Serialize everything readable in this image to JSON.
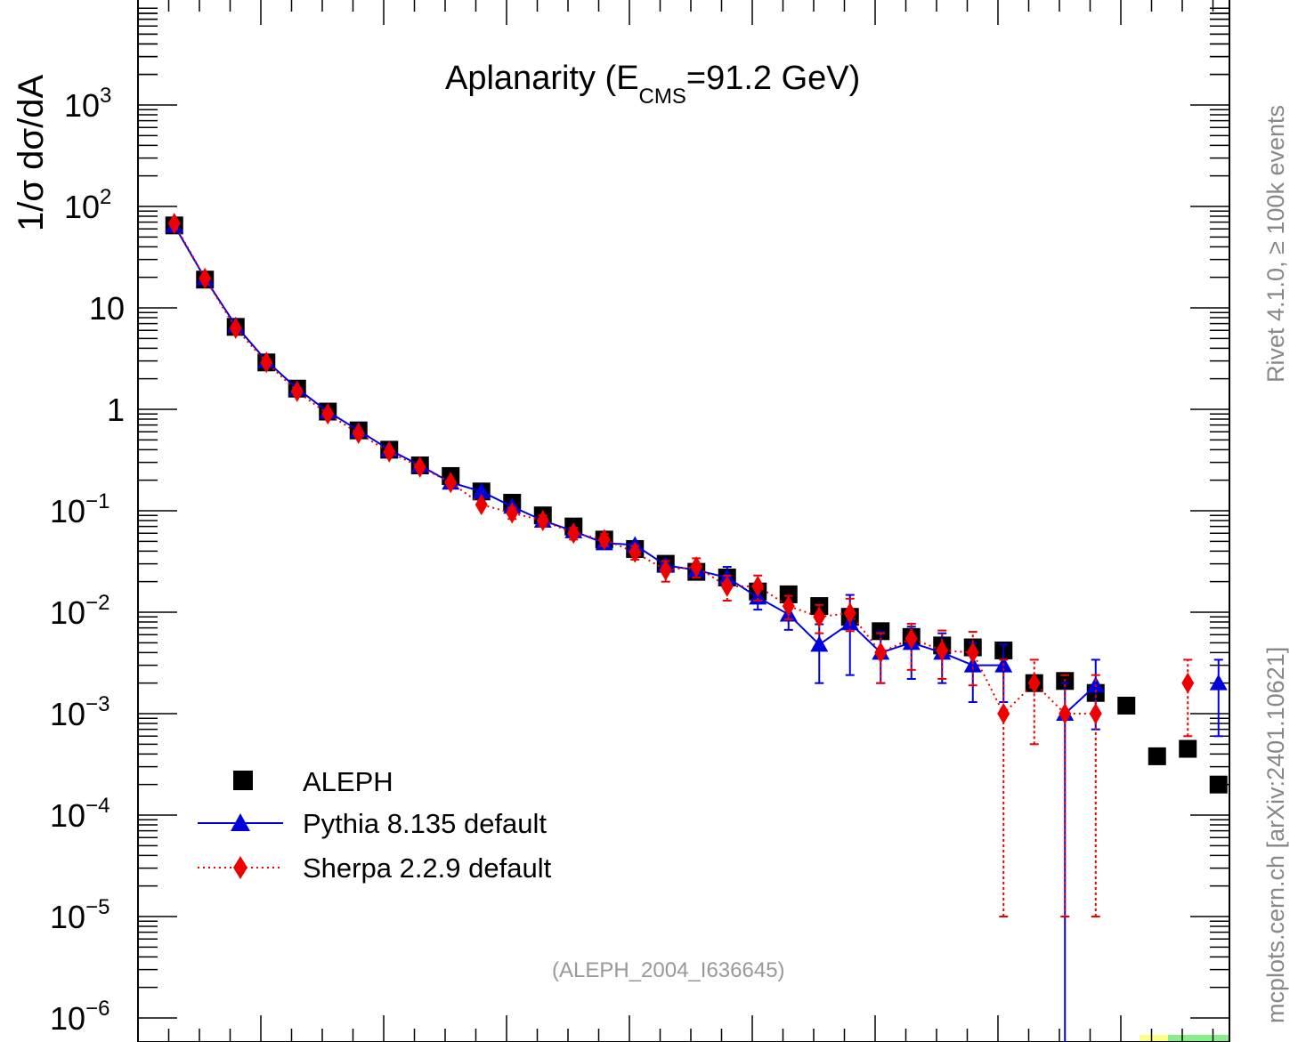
{
  "chart_data": {
    "type": "line",
    "title": "Aplanarity (E",
    "title_sub": "CMS",
    "title_tail": "=91.2 GeV)",
    "ylabel": "1/σ  dσ/dA",
    "xlabel": "",
    "yscale": "log",
    "ylim": [
      1e-06,
      10000
    ],
    "xlim": [
      0,
      0.3
    ],
    "grid": false,
    "legend_position": "lower-left",
    "y_ticks": [
      {
        "v": 1e-06,
        "base": "10",
        "exp": "−6"
      },
      {
        "v": 1e-05,
        "base": "10",
        "exp": "−5"
      },
      {
        "v": 0.0001,
        "base": "10",
        "exp": "−4"
      },
      {
        "v": 0.001,
        "base": "10",
        "exp": "−3"
      },
      {
        "v": 0.01,
        "base": "10",
        "exp": "−2"
      },
      {
        "v": 0.1,
        "base": "10",
        "exp": "−1"
      },
      {
        "v": 1,
        "base": "1",
        "exp": ""
      },
      {
        "v": 10,
        "base": "10",
        "exp": ""
      },
      {
        "v": 100,
        "base": "10",
        "exp": "2"
      },
      {
        "v": 1000,
        "base": "10",
        "exp": "3"
      }
    ],
    "x": [
      0.0025,
      0.0075,
      0.0125,
      0.0175,
      0.0225,
      0.0275,
      0.0325,
      0.0375,
      0.0425,
      0.0475,
      0.0525,
      0.0575,
      0.0625,
      0.0675,
      0.0725,
      0.0775,
      0.0825,
      0.0875,
      0.0925,
      0.0975,
      0.1025,
      0.1075,
      0.1125,
      0.1175,
      0.1225,
      0.1275,
      0.1325,
      0.1375,
      0.1425,
      0.1475,
      0.1525,
      0.1575,
      0.1625,
      0.1675,
      0.1725
    ],
    "series": [
      {
        "name": "ALEPH",
        "color": "#000000",
        "marker": "square",
        "values": [
          65,
          19,
          6.5,
          2.9,
          1.6,
          0.95,
          0.62,
          0.4,
          0.28,
          0.22,
          0.155,
          0.12,
          0.09,
          0.07,
          0.052,
          0.042,
          0.03,
          0.025,
          0.022,
          0.016,
          0.015,
          0.0115,
          0.009,
          0.0065,
          0.0057,
          0.0047,
          0.0045,
          0.0042,
          0.002,
          0.0021,
          0.0016,
          0.0012,
          0.00038,
          0.00045,
          0.0002
        ]
      },
      {
        "name": "Pythia 8.135 default",
        "color": "#0000dd",
        "marker": "triangle",
        "values": [
          65,
          19.5,
          6.7,
          3.0,
          1.6,
          0.95,
          0.62,
          0.4,
          0.28,
          0.19,
          0.155,
          0.11,
          0.08,
          0.063,
          0.048,
          0.046,
          0.029,
          0.026,
          0.022,
          0.014,
          0.0095,
          0.0048,
          0.0078,
          0.004,
          0.005,
          0.004,
          0.003,
          0.003,
          null,
          0.001,
          0.0019,
          null,
          null,
          null,
          0.002
        ],
        "err_low": [
          0,
          0,
          0,
          0,
          0,
          0,
          0,
          0,
          0,
          0,
          0,
          0,
          0,
          0,
          0,
          0,
          0,
          0,
          0.0045,
          0.0034,
          0.0028,
          0.0028,
          0.0054,
          0.002,
          0.0028,
          0.002,
          0.0017,
          0.0017,
          null,
          0.001,
          0.0012,
          null,
          null,
          null,
          0.0014
        ],
        "err_high": [
          0,
          0,
          0,
          0,
          0,
          0,
          0,
          0,
          0,
          0,
          0,
          0,
          0,
          0,
          0,
          0,
          0,
          0,
          0.006,
          0.0044,
          0.003,
          0.0028,
          0.007,
          0.0024,
          0.0022,
          0.0022,
          0.002,
          0.0018,
          null,
          0.001,
          0.0015,
          null,
          null,
          null,
          0.0014
        ]
      },
      {
        "name": "Sherpa 2.2.9 default",
        "color": "#ee0000",
        "marker": "diamond",
        "values": [
          68,
          19.5,
          6.3,
          2.9,
          1.5,
          0.9,
          0.58,
          0.38,
          0.27,
          0.19,
          0.115,
          0.095,
          0.08,
          0.06,
          0.052,
          0.039,
          0.026,
          0.028,
          0.018,
          0.018,
          0.0115,
          0.009,
          0.0098,
          0.004,
          0.0055,
          0.0042,
          0.004,
          0.001,
          0.002,
          0.001,
          0.001,
          null,
          null,
          0.002,
          null
        ],
        "err_low": [
          0,
          0,
          0,
          0,
          0,
          0,
          0,
          0,
          0,
          0,
          0,
          0.012,
          0.01,
          0.008,
          0.007,
          0.006,
          0.006,
          0.006,
          0.005,
          0.005,
          0.003,
          0.0028,
          0.0033,
          0.002,
          0.0028,
          0.002,
          0.0021,
          0.00099,
          0.0015,
          0.00099,
          0.00099,
          null,
          null,
          0.0014,
          null
        ],
        "err_high": [
          0,
          0,
          0,
          0,
          0,
          0,
          0,
          0,
          0,
          0,
          0,
          0.012,
          0.01,
          0.008,
          0.007,
          0.006,
          0.006,
          0.006,
          0.005,
          0.005,
          0.003,
          0.0028,
          0.0038,
          0.0022,
          0.0022,
          0.0024,
          0.0024,
          0.0024,
          0.0014,
          0.0014,
          0.0014,
          null,
          null,
          0.0014,
          null
        ]
      }
    ]
  },
  "side_text_right_top": "Rivet 4.1.0, ≥ 100k events",
  "side_text_right_bottom": "mcplots.cern.ch [arXiv:2401.10621]",
  "reference": "(ALEPH_2004_I636645)",
  "legend": {
    "aleph": "ALEPH",
    "pythia": "Pythia 8.135 default",
    "sherpa": "Sherpa 2.2.9 default"
  }
}
